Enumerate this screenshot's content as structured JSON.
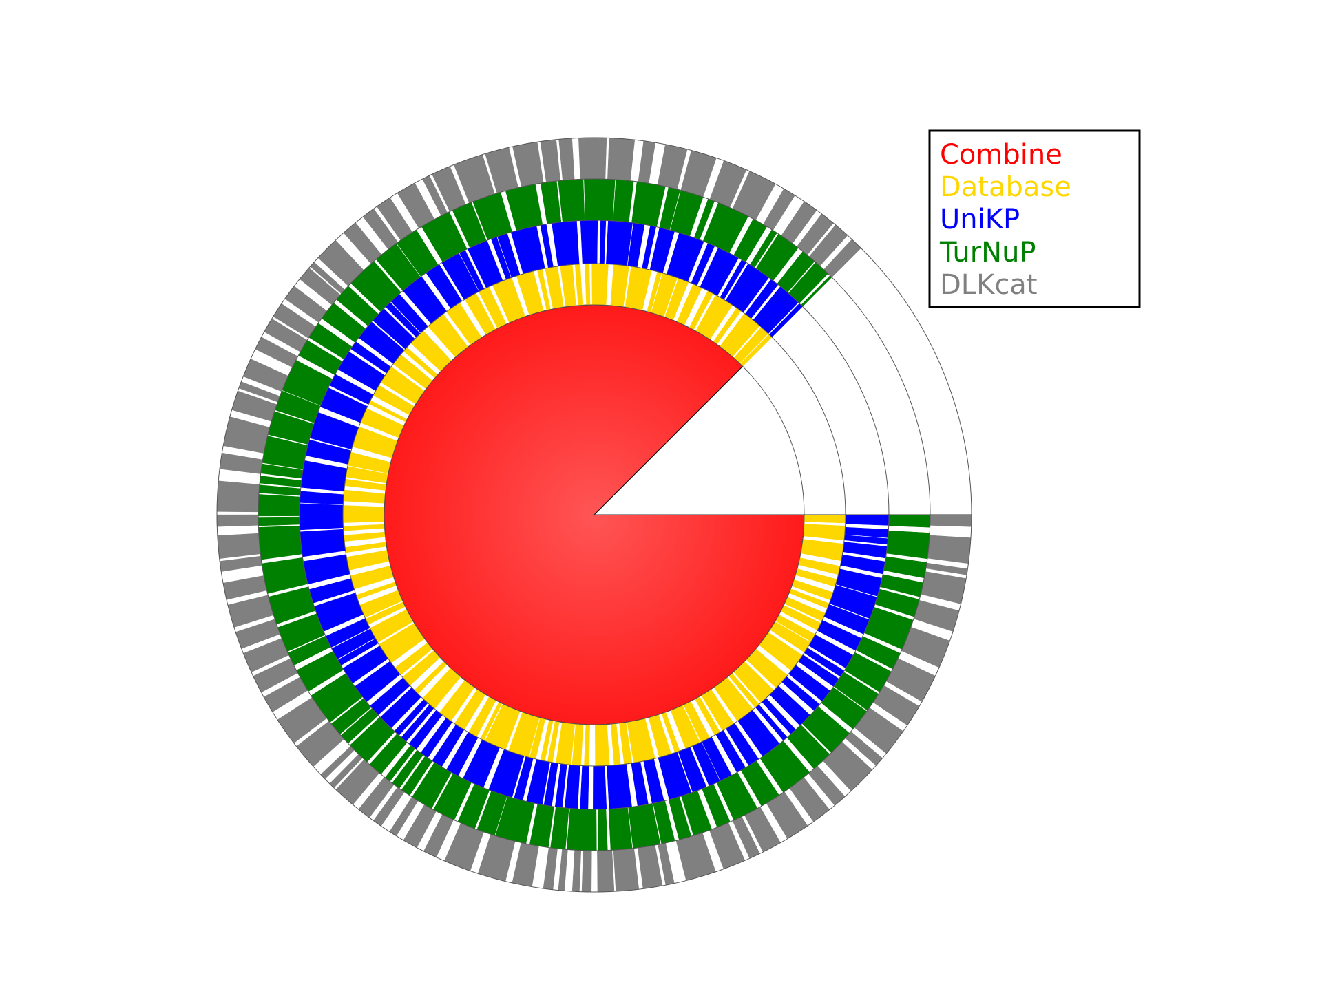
{
  "chart_data": {
    "type": "radial-coverage",
    "start_angle_deg": 0,
    "span_deg": 315,
    "rings": [
      {
        "name": "Combine",
        "color": "#ff0000",
        "coverage": 1.0,
        "gap_seed": 11
      },
      {
        "name": "Database",
        "color": "#ffd700",
        "coverage": 0.74,
        "gap_seed": 23
      },
      {
        "name": "UniKP",
        "color": "#0000ff",
        "coverage": 0.8,
        "gap_seed": 37
      },
      {
        "name": "TurNuP",
        "color": "#008000",
        "coverage": 0.82,
        "gap_seed": 51
      },
      {
        "name": "DLKcat",
        "color": "#808080",
        "coverage": 0.68,
        "gap_seed": 73
      }
    ],
    "legend": {
      "placement": "top-right",
      "entries": [
        {
          "label": "Combine",
          "color": "#ff0000"
        },
        {
          "label": "Database",
          "color": "#ffd700"
        },
        {
          "label": "UniKP",
          "color": "#0000ff"
        },
        {
          "label": "TurNuP",
          "color": "#008000"
        },
        {
          "label": "DLKcat",
          "color": "#808080"
        }
      ]
    }
  }
}
